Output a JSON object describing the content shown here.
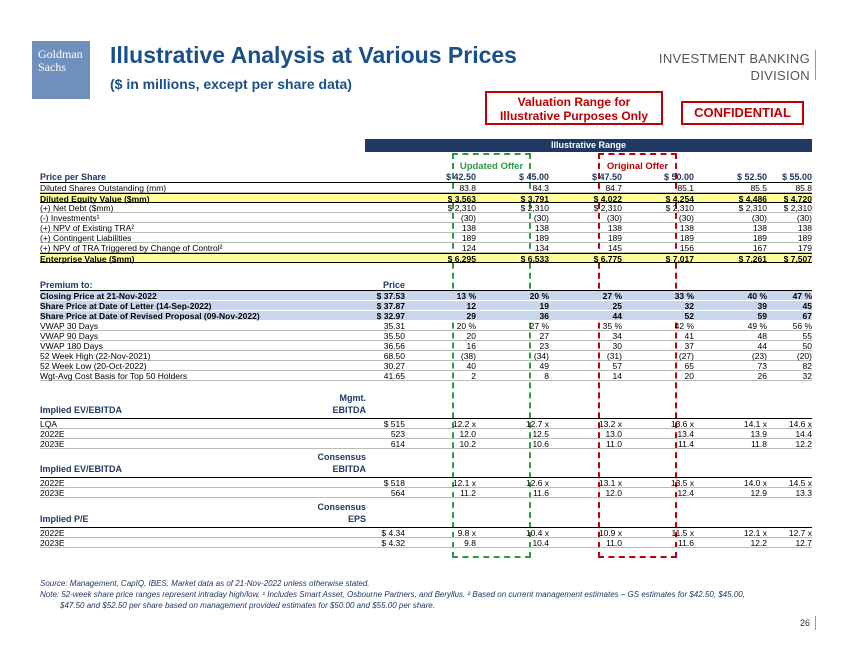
{
  "logo": {
    "line1": "Goldman",
    "line2": "Sachs"
  },
  "title": "Illustrative Analysis at Various Prices",
  "subtitle": "($ in millions, except per share data)",
  "division": {
    "line1": "INVESTMENT BANKING",
    "line2": "DIVISION"
  },
  "valuation_box": {
    "line1": "Valuation Range for",
    "line2": "Illustrative Purposes Only"
  },
  "confidential": "CONFIDENTIAL",
  "range_header": "Illustrative Range",
  "updated_offer": "Updated Offer",
  "original_offer": "Original Offer",
  "price_header": {
    "label": "Price per Share",
    "cols": [
      "$ 42.50",
      "$ 45.00",
      "$ 47.50",
      "$ 50.00",
      "$ 52.50",
      "$ 55.00"
    ]
  },
  "rows1": [
    {
      "label": "Diluted Shares Outstanding (mm)",
      "cols": [
        "83.8",
        "84.3",
        "84.7",
        "85.1",
        "85.5",
        "85.8"
      ],
      "style": ""
    },
    {
      "label": "Diluted Equity Value ($mm)",
      "cols": [
        "$ 3,563",
        "$ 3,791",
        "$ 4,022",
        "$ 4,254",
        "$ 4,486",
        "$ 4,720"
      ],
      "style": "hl"
    },
    {
      "label": "(+) Net Debt ($mm)",
      "cols": [
        "$ 2,310",
        "$ 2,310",
        "$ 2,310",
        "$ 2,310",
        "$ 2,310",
        "$ 2,310"
      ],
      "style": ""
    },
    {
      "label": "(-) Investments¹",
      "cols": [
        "(30)",
        "(30)",
        "(30)",
        "(30)",
        "(30)",
        "(30)"
      ],
      "style": ""
    },
    {
      "label": "(+) NPV of Existing TRA²",
      "cols": [
        "138",
        "138",
        "138",
        "138",
        "138",
        "138"
      ],
      "style": ""
    },
    {
      "label": "(+) Contingent Liabilities",
      "cols": [
        "189",
        "189",
        "189",
        "189",
        "189",
        "189"
      ],
      "style": ""
    },
    {
      "label": "(+) NPV of TRA Triggered by Change of Control²",
      "cols": [
        "124",
        "134",
        "145",
        "156",
        "167",
        "179"
      ],
      "style": ""
    },
    {
      "label": "Enterprise Value ($mm)",
      "cols": [
        "$ 6,295",
        "$ 6,533",
        "$ 6,775",
        "$ 7,017",
        "$ 7,261",
        "$ 7,507"
      ],
      "style": "hl"
    }
  ],
  "premium_header": {
    "label": "Premium to:",
    "price": "Price"
  },
  "rows2": [
    {
      "label": "Closing Price at 21-Nov-2022",
      "base": "$ 37.53",
      "cols": [
        "13 %",
        "20 %",
        "27 %",
        "33 %",
        "40 %",
        "47 %"
      ],
      "style": "bl"
    },
    {
      "label": "Share Price at Date of Letter (14-Sep-2022)",
      "base": "$ 37.87",
      "cols": [
        "12",
        "19",
        "25",
        "32",
        "39",
        "45"
      ],
      "style": "bl"
    },
    {
      "label": "Share Price at Date of Revised Proposal (09-Nov-2022)",
      "base": "$ 32.97",
      "cols": [
        "29",
        "36",
        "44",
        "52",
        "59",
        "67"
      ],
      "style": "bl"
    },
    {
      "label": "VWAP 30 Days",
      "base": "35.31",
      "cols": [
        "20 %",
        "27 %",
        "35 %",
        "42 %",
        "49 %",
        "56 %"
      ],
      "style": ""
    },
    {
      "label": "VWAP 90 Days",
      "base": "35.50",
      "cols": [
        "20",
        "27",
        "34",
        "41",
        "48",
        "55"
      ],
      "style": ""
    },
    {
      "label": "VWAP 180 Days",
      "base": "36.56",
      "cols": [
        "16",
        "23",
        "30",
        "37",
        "44",
        "50"
      ],
      "style": ""
    },
    {
      "label": "52 Week High (22-Nov-2021)",
      "base": "68.50",
      "cols": [
        "(38)",
        "(34)",
        "(31)",
        "(27)",
        "(23)",
        "(20)"
      ],
      "style": ""
    },
    {
      "label": "52 Week Low (20-Oct-2022)",
      "base": "30.27",
      "cols": [
        "40",
        "49",
        "57",
        "65",
        "73",
        "82"
      ],
      "style": ""
    },
    {
      "label": "Wgt-Avg Cost Basis for Top 50 Holders",
      "base": "41.65",
      "cols": [
        "2",
        "8",
        "14",
        "20",
        "26",
        "32"
      ],
      "style": ""
    }
  ],
  "sec_ebitda1": {
    "title": "Implied EV/EBITDA",
    "hdr1": "Mgmt.",
    "hdr2": "EBITDA"
  },
  "rows3": [
    {
      "label": "LQA",
      "base": "$ 515",
      "cols": [
        "12.2 x",
        "12.7 x",
        "13.2 x",
        "13.6 x",
        "14.1 x",
        "14.6 x"
      ]
    },
    {
      "label": "2022E",
      "base": "523",
      "cols": [
        "12.0",
        "12.5",
        "13.0",
        "13.4",
        "13.9",
        "14.4"
      ]
    },
    {
      "label": "2023E",
      "base": "614",
      "cols": [
        "10.2",
        "10.6",
        "11.0",
        "11.4",
        "11.8",
        "12.2"
      ]
    }
  ],
  "sec_ebitda2": {
    "title": "Implied EV/EBITDA",
    "hdr1": "Consensus",
    "hdr2": "EBITDA"
  },
  "rows4": [
    {
      "label": "2022E",
      "base": "$ 518",
      "cols": [
        "12.1 x",
        "12.6 x",
        "13.1 x",
        "13.5 x",
        "14.0 x",
        "14.5 x"
      ]
    },
    {
      "label": "2023E",
      "base": "564",
      "cols": [
        "11.2",
        "11.6",
        "12.0",
        "12.4",
        "12.9",
        "13.3"
      ]
    }
  ],
  "sec_pe": {
    "title": "Implied P/E",
    "hdr1": "Consensus",
    "hdr2": "EPS"
  },
  "rows5": [
    {
      "label": "2022E",
      "base": "$ 4.34",
      "cols": [
        "9.8 x",
        "10.4 x",
        "10.9 x",
        "11.5 x",
        "12.1 x",
        "12.7 x"
      ]
    },
    {
      "label": "2023E",
      "base": "$ 4.32",
      "cols": [
        "9.8",
        "10.4",
        "11.0",
        "11.6",
        "12.2",
        "12.7"
      ]
    }
  ],
  "source": "Source: Management, CapIQ, IBES. Market data as of 21-Nov-2022 unless otherwise stated.",
  "note1": "Note: 52-week share price ranges represent intraday high/low. ¹ Includes Smart Asset, Osbourne Partners, and Beryllus. ² Based on current management estimates – GS estimates for $42.50, $45.00,",
  "note2": "$47.50 and $52.50 per share based on management provided estimates for $50.00 and $55.00 per share.",
  "page_number": "26"
}
